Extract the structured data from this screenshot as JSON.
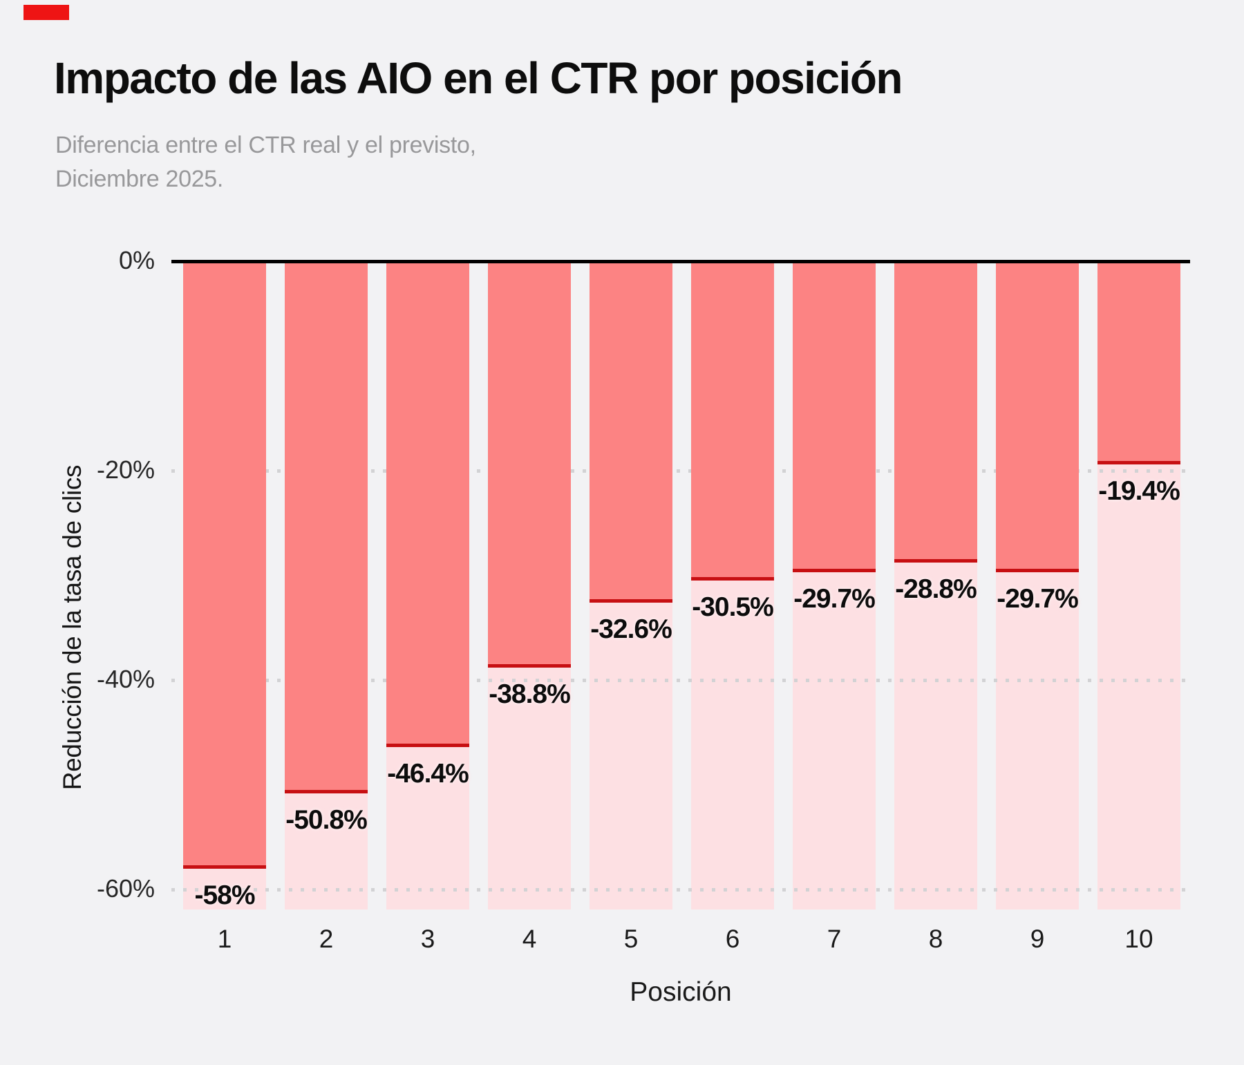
{
  "corner_marker": {
    "color": "#ee1414"
  },
  "header": {
    "title": "Impacto de las AIO en el CTR por posición",
    "subtitle_line1": "Diferencia entre el CTR real y el previsto,",
    "subtitle_line2": "Diciembre 2025."
  },
  "chart_data": {
    "type": "bar",
    "title": "Impacto de las AIO en el CTR por posición",
    "subtitle": "Diferencia entre el CTR real y el previsto, Diciembre 2025.",
    "xlabel": "Posición",
    "ylabel": "Reducción de la tasa de clics",
    "categories": [
      "1",
      "2",
      "3",
      "4",
      "5",
      "6",
      "7",
      "8",
      "9",
      "10"
    ],
    "values": [
      -58,
      -50.8,
      -46.4,
      -38.8,
      -32.6,
      -30.5,
      -29.7,
      -28.8,
      -29.7,
      -19.4
    ],
    "value_labels": [
      "-58%",
      "-50.8%",
      "-46.4%",
      "-38.8%",
      "-32.6%",
      "-30.5%",
      "-29.7%",
      "-28.8%",
      "-29.7%",
      "-19.4%"
    ],
    "y_ticks": [
      {
        "label": "0%",
        "value": 0
      },
      {
        "label": "-20%",
        "value": -20
      },
      {
        "label": "-40%",
        "value": -40
      },
      {
        "label": "-60%",
        "value": -60
      }
    ],
    "ylim": [
      -62,
      0
    ],
    "grid": "horizontal-dotted",
    "legend": null,
    "colors": {
      "bar_actual": "#fc8383",
      "bar_expected_bg": "#fde0e3",
      "divider_line": "#c70f12",
      "zero_axis": "#000000",
      "gridline_dots": "#d2d2d4",
      "background": "#f2f2f4",
      "title_text": "#0d0d0d",
      "subtitle_text": "#98989a",
      "value_label_text": "#0c0c0c",
      "tick_text": "#262626"
    }
  }
}
